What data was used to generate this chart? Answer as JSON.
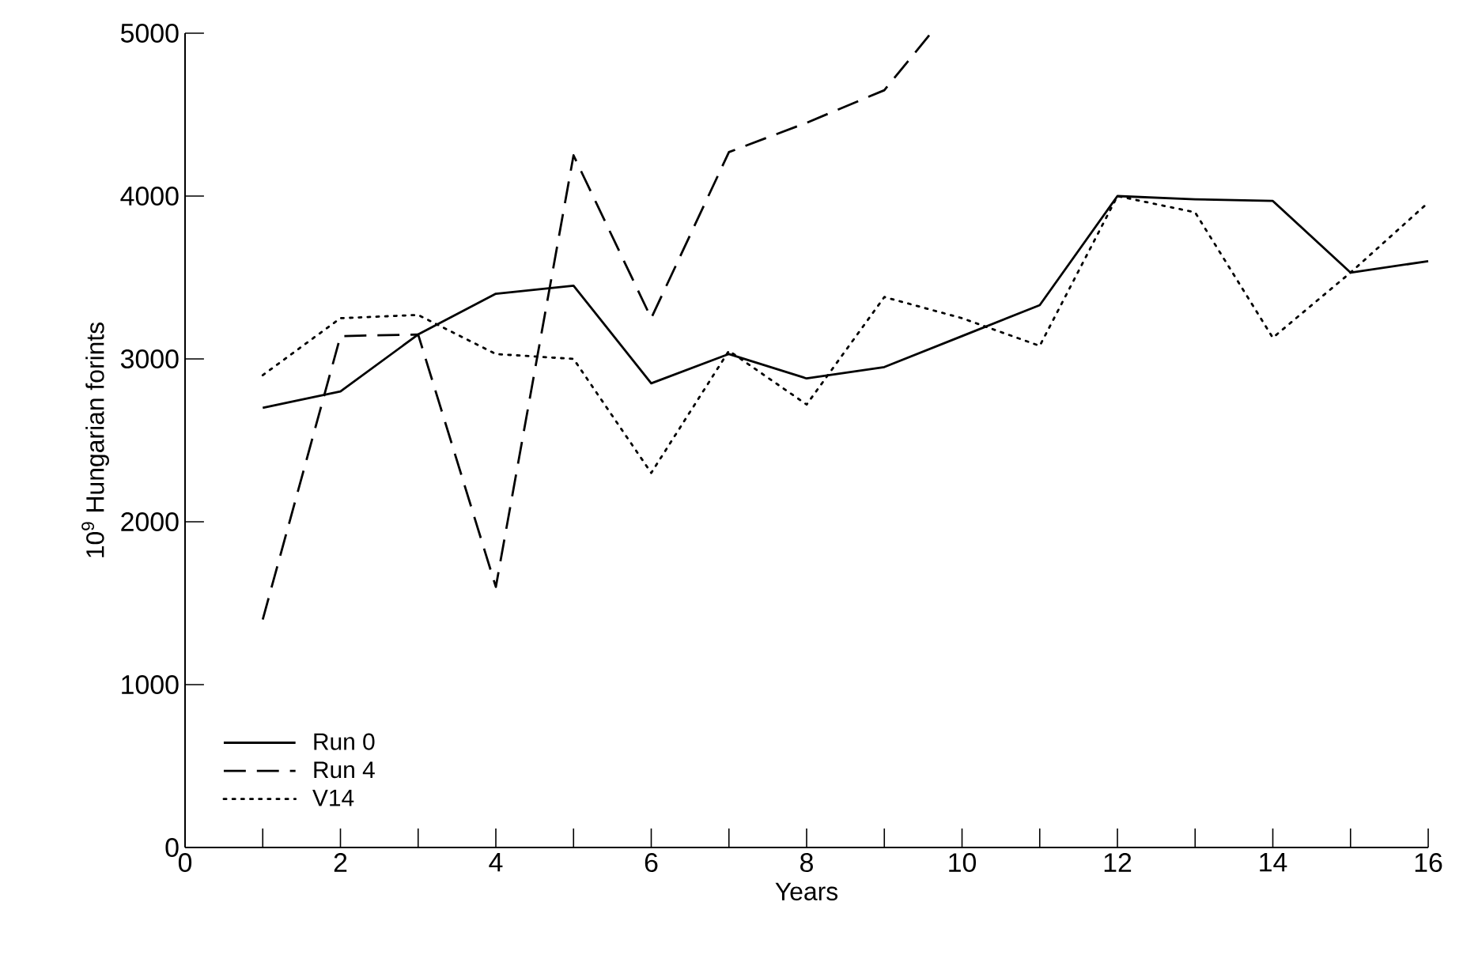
{
  "chart_data": {
    "type": "line",
    "xlabel": "Years",
    "ylabel": "10$^{9}$ Hungarian forints",
    "x": [
      1,
      2,
      3,
      4,
      5,
      6,
      7,
      8,
      9,
      10,
      11,
      12,
      13,
      14,
      15,
      16
    ],
    "series": [
      {
        "name": "Run 0",
        "color": "#000000",
        "line_style": "solid",
        "values": [
          2700,
          2800,
          3150,
          3400,
          3450,
          2850,
          3030,
          2880,
          2950,
          3140,
          3330,
          4000,
          3980,
          3970,
          3530,
          3600
        ]
      },
      {
        "name": "Run 4",
        "color": "#000000",
        "line_style": "dashed",
        "x": [
          1,
          2,
          3,
          4,
          5,
          6,
          7,
          8,
          9,
          9.6
        ],
        "values": [
          1400,
          3140,
          3150,
          1600,
          4250,
          3250,
          4270,
          4450,
          4650,
          5000
        ]
      },
      {
        "name": "V14",
        "color": "#000000",
        "line_style": "dotted",
        "values": [
          2900,
          3250,
          3270,
          3030,
          3000,
          2300,
          3050,
          2720,
          3380,
          3250,
          3080,
          4000,
          3900,
          3130,
          3530,
          3960
        ]
      }
    ],
    "xlim": [
      0,
      16
    ],
    "ylim": [
      0,
      5000
    ],
    "xticks": [
      0,
      {
        "value": 1,
        "label": null
      },
      2,
      {
        "value": 3,
        "label": null
      },
      4,
      {
        "value": 5,
        "label": null
      },
      6,
      {
        "value": 7,
        "label": null
      },
      8,
      {
        "value": 9,
        "label": null
      },
      10,
      {
        "value": 11,
        "label": null
      },
      12,
      {
        "value": 13,
        "label": null
      },
      14,
      {
        "value": 15,
        "label": null
      },
      16
    ],
    "yticks": [
      0,
      1000,
      2000,
      3000,
      4000,
      5000
    ],
    "grid": false,
    "legend": "bottom left",
    "marker": "none"
  }
}
